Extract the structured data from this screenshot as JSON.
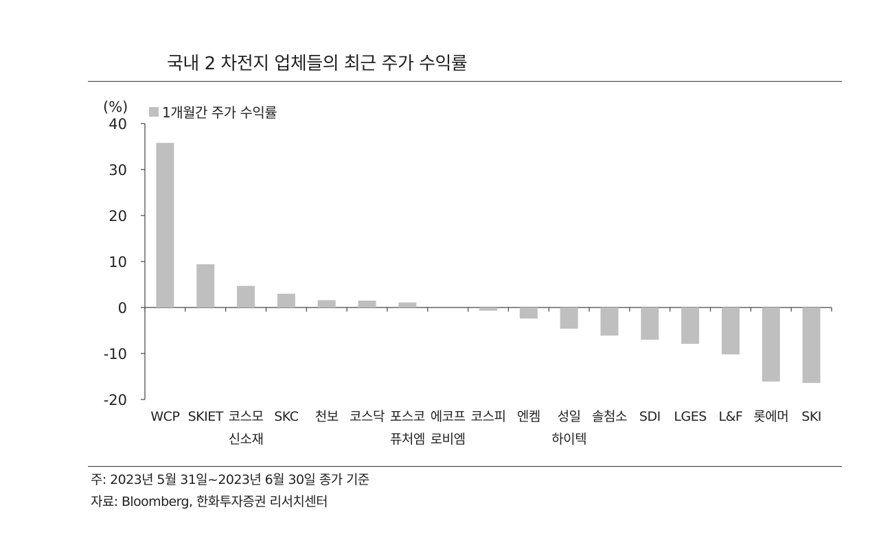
{
  "title": "국내 2 차전지 업체들의 최근 주가 수익률",
  "note": "주: 2023년 5월 31일~2023년 6월 30일 종가 기준",
  "source": "자료: Bloomberg, 한화투자증권 리서치센터",
  "colors": {
    "bar": "#bfbfbf",
    "axis": "#444444",
    "rule": "#333333"
  },
  "chart_data": {
    "type": "bar",
    "unit_label": "(%)",
    "ylim": [
      -20,
      40
    ],
    "yticks": [
      "40",
      "30",
      "20",
      "10",
      "0",
      "-10",
      "-20"
    ],
    "ytick_values": [
      40,
      30,
      20,
      10,
      0,
      -10,
      -20
    ],
    "grid": false,
    "legend_position": "top-left",
    "categories": [
      [
        "WCP"
      ],
      [
        "SKIET"
      ],
      [
        "코스모",
        "신소재"
      ],
      [
        "SKC"
      ],
      [
        "천보"
      ],
      [
        "코스닥"
      ],
      [
        "포스코",
        "퓨처엠"
      ],
      [
        "에코프",
        "로비엠"
      ],
      [
        "코스피"
      ],
      [
        "엔켐"
      ],
      [
        "성일",
        "하이텍"
      ],
      [
        "솔첨소"
      ],
      [
        "SDI"
      ],
      [
        "LGES"
      ],
      [
        "L&F"
      ],
      [
        "롯에머"
      ],
      [
        "SKI"
      ]
    ],
    "series": [
      {
        "name": "1개월간 주가 수익률",
        "values": [
          35.8,
          9.4,
          4.7,
          3.0,
          1.6,
          1.5,
          1.1,
          0.0,
          -0.7,
          -2.4,
          -4.6,
          -6.1,
          -7.0,
          -7.9,
          -10.2,
          -16.1,
          -16.4
        ]
      }
    ]
  }
}
